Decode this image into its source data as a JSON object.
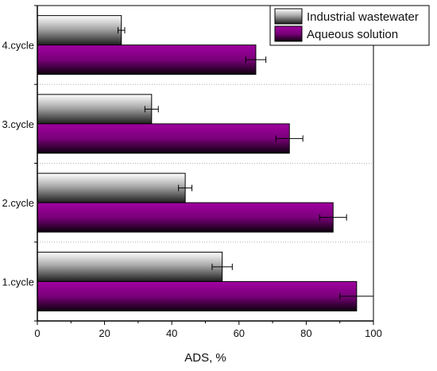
{
  "chart_data": {
    "type": "bar",
    "orientation": "horizontal",
    "categories": [
      "1.cycle",
      "2.cycle",
      "3.cycle",
      "4.cycle"
    ],
    "series": [
      {
        "name": "Industrial wastewater",
        "values": [
          55,
          44,
          34,
          25
        ],
        "errors": [
          3,
          2,
          2,
          1
        ],
        "color": "#9a9a9a"
      },
      {
        "name": "Aqueous solution",
        "values": [
          95,
          88,
          75,
          65
        ],
        "errors": [
          5,
          4,
          4,
          3
        ],
        "color": "#800080"
      }
    ],
    "xlabel": "ADS, %",
    "ylabel": "",
    "xlim": [
      0,
      100
    ],
    "xticks": [
      "0",
      "20",
      "40",
      "60",
      "80",
      "100"
    ],
    "grid": "dotted separators between categories",
    "legend": "top-right"
  }
}
